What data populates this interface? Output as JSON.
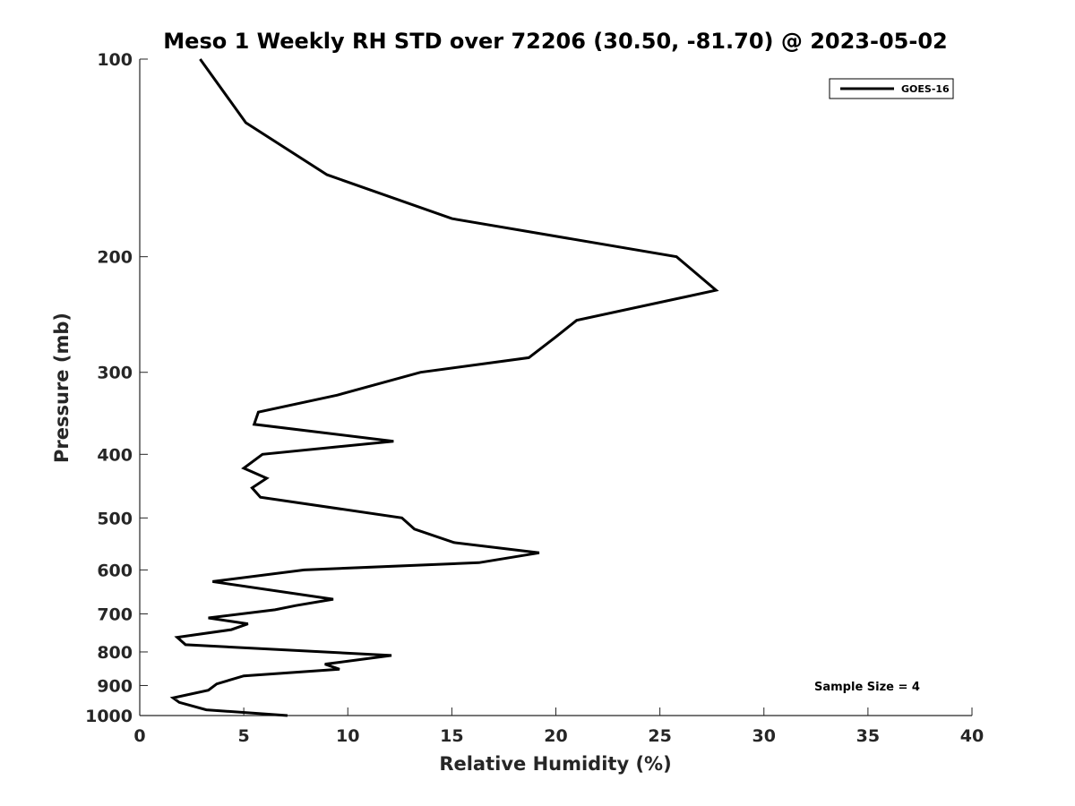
{
  "chart_data": {
    "type": "line",
    "title": "Meso 1 Weekly RH STD over 72206 (30.50, -81.70) @ 2023-05-02",
    "xlabel": "Relative Humidity (%)",
    "ylabel": "Pressure (mb)",
    "xlim": [
      0,
      40
    ],
    "ylim": [
      100,
      1000
    ],
    "y_scale": "log",
    "y_reversed": true,
    "x_ticks": [
      0,
      5,
      10,
      15,
      20,
      25,
      30,
      35,
      40
    ],
    "x_tick_labels": [
      "0",
      "5",
      "10",
      "15",
      "20",
      "25",
      "30",
      "35",
      "40"
    ],
    "y_ticks": [
      100,
      200,
      300,
      400,
      500,
      600,
      700,
      800,
      900,
      1000
    ],
    "y_tick_labels": [
      "100",
      "200",
      "300",
      "400",
      "500",
      "600",
      "700",
      "800",
      "900",
      "1000"
    ],
    "grid": false,
    "legend_position": "top-right",
    "annotation": "Sample Size = 4",
    "series": [
      {
        "name": "GOES-16",
        "color": "#000000",
        "points": [
          [
            2.9,
            100
          ],
          [
            5.1,
            125
          ],
          [
            9.0,
            150
          ],
          [
            15.0,
            175
          ],
          [
            25.8,
            200
          ],
          [
            27.7,
            225
          ],
          [
            21.0,
            250
          ],
          [
            20.0,
            265
          ],
          [
            18.7,
            285
          ],
          [
            13.5,
            300
          ],
          [
            9.5,
            325
          ],
          [
            5.7,
            345
          ],
          [
            5.5,
            360
          ],
          [
            12.2,
            382
          ],
          [
            5.9,
            400
          ],
          [
            5.0,
            420
          ],
          [
            6.1,
            435
          ],
          [
            5.4,
            450
          ],
          [
            5.8,
            465
          ],
          [
            12.6,
            500
          ],
          [
            13.2,
            520
          ],
          [
            15.1,
            545
          ],
          [
            19.2,
            565
          ],
          [
            16.3,
            585
          ],
          [
            7.9,
            600
          ],
          [
            3.5,
            625
          ],
          [
            9.3,
            665
          ],
          [
            7.5,
            680
          ],
          [
            6.5,
            690
          ],
          [
            3.3,
            710
          ],
          [
            5.2,
            725
          ],
          [
            4.4,
            740
          ],
          [
            1.8,
            760
          ],
          [
            2.2,
            780
          ],
          [
            12.1,
            810
          ],
          [
            8.9,
            835
          ],
          [
            9.6,
            850
          ],
          [
            5.0,
            870
          ],
          [
            3.7,
            895
          ],
          [
            3.3,
            915
          ],
          [
            1.6,
            940
          ],
          [
            1.9,
            955
          ],
          [
            3.2,
            980
          ],
          [
            7.1,
            1000
          ]
        ]
      }
    ]
  }
}
